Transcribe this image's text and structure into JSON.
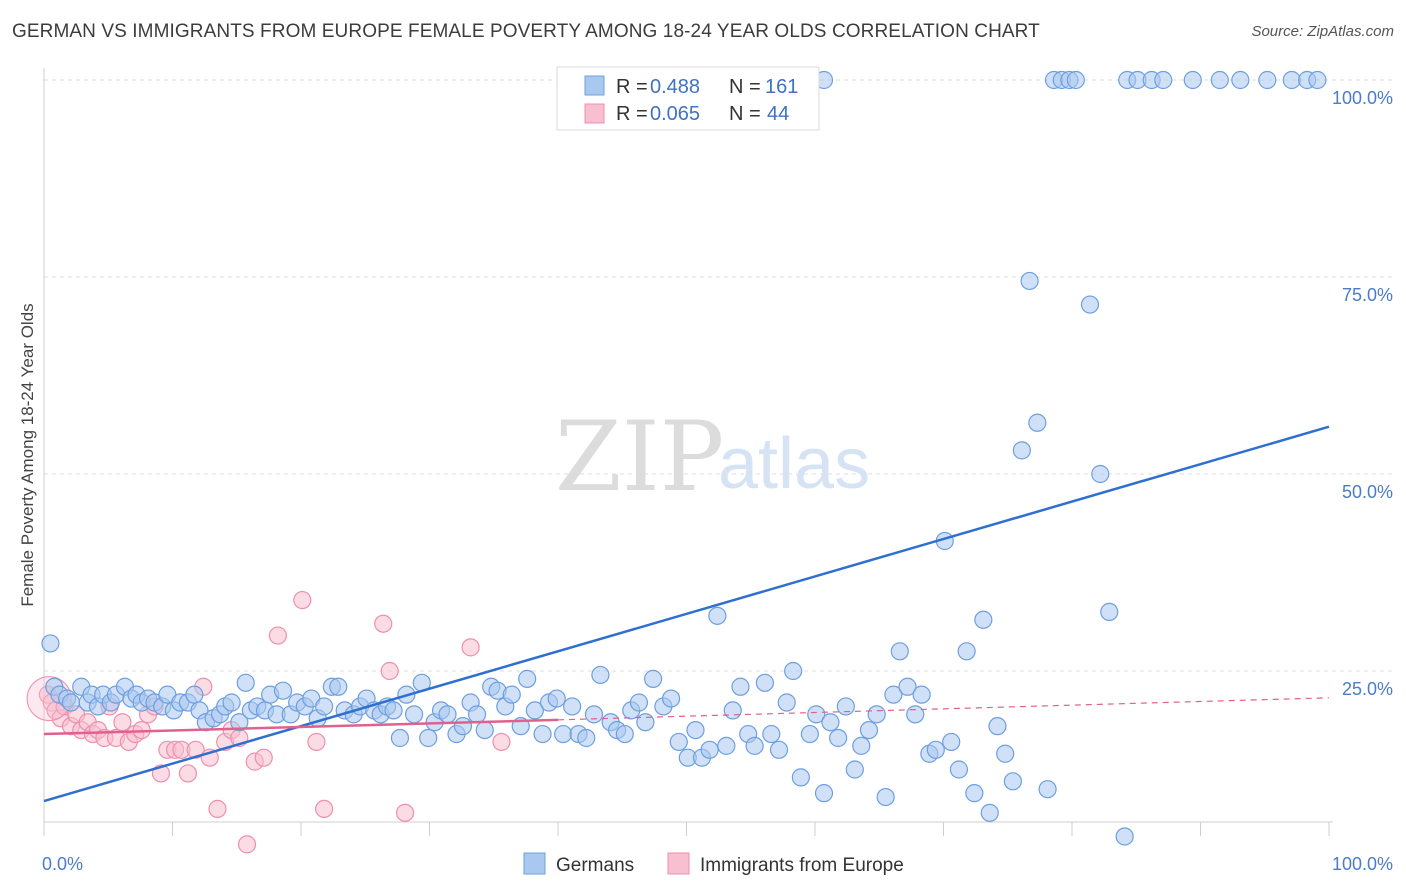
{
  "header": {
    "title": "GERMAN VS IMMIGRANTS FROM EUROPE FEMALE POVERTY AMONG 18-24 YEAR OLDS CORRELATION CHART",
    "source": "Source: ZipAtlas.com"
  },
  "watermark": {
    "zip": "ZIP",
    "atlas": "atlas"
  },
  "colors": {
    "germans_fill": "#a9c8f0",
    "germans_stroke": "#6d9fe0",
    "germans_line": "#2f6fd0",
    "immigrants_fill": "#f7bfd0",
    "immigrants_stroke": "#ee8fae",
    "immigrants_line": "#e0608e",
    "axis_tick_text": "#4a7cc9",
    "grid": "#dddddd"
  },
  "legend": {
    "rows": [
      {
        "r_label": "R =",
        "r_value": "0.488",
        "n_label": "N =",
        "n_value": "161"
      },
      {
        "r_label": "R =",
        "r_value": "0.065",
        "n_label": "N =",
        "n_value": "44"
      }
    ]
  },
  "chart_data": {
    "type": "scatter",
    "title": "GERMAN VS IMMIGRANTS FROM EUROPE FEMALE POVERTY AMONG 18-24 YEAR OLDS CORRELATION CHART",
    "xlabel": "",
    "ylabel": "Female Poverty Among 18-24 Year Olds",
    "xlim": [
      0,
      100
    ],
    "ylim": [
      0,
      105
    ],
    "x_tick_labels": [
      "0.0%",
      "100.0%"
    ],
    "y_ticks": [
      25,
      50,
      75,
      100
    ],
    "y_tick_labels": [
      "25.0%",
      "50.0%",
      "75.0%",
      "100.0%"
    ],
    "grid": true,
    "legend_position": "top-center",
    "series": [
      {
        "name": "Germans",
        "trend": {
          "x": [
            0,
            100
          ],
          "y": [
            8.5,
            56
          ]
        },
        "points": [
          [
            0.5,
            28.5
          ],
          [
            0.8,
            23
          ],
          [
            1.2,
            22
          ],
          [
            1.8,
            21.5
          ],
          [
            2.1,
            21
          ],
          [
            2.9,
            23
          ],
          [
            3.4,
            21
          ],
          [
            3.7,
            22
          ],
          [
            4.2,
            20.5
          ],
          [
            4.6,
            22
          ],
          [
            5.2,
            21
          ],
          [
            5.6,
            22
          ],
          [
            6.3,
            23
          ],
          [
            6.8,
            21.5
          ],
          [
            7.2,
            22
          ],
          [
            7.6,
            21
          ],
          [
            8.1,
            21.5
          ],
          [
            8.6,
            21
          ],
          [
            9.2,
            20.5
          ],
          [
            9.6,
            22
          ],
          [
            10.1,
            20
          ],
          [
            10.6,
            21
          ],
          [
            11.2,
            21
          ],
          [
            11.7,
            22
          ],
          [
            12.1,
            20
          ],
          [
            12.6,
            18.5
          ],
          [
            13.2,
            19
          ],
          [
            13.7,
            19.5
          ],
          [
            14.1,
            20.5
          ],
          [
            14.6,
            21
          ],
          [
            15.2,
            18.5
          ],
          [
            15.7,
            23.5
          ],
          [
            16.1,
            20
          ],
          [
            16.6,
            20.5
          ],
          [
            17.2,
            20
          ],
          [
            17.6,
            22
          ],
          [
            18.1,
            19.5
          ],
          [
            18.6,
            22.5
          ],
          [
            19.2,
            19.5
          ],
          [
            19.7,
            21
          ],
          [
            20.3,
            20.5
          ],
          [
            20.8,
            21.5
          ],
          [
            21.3,
            19
          ],
          [
            21.8,
            20.5
          ],
          [
            22.4,
            23
          ],
          [
            22.9,
            23
          ],
          [
            23.4,
            20
          ],
          [
            24.1,
            19.5
          ],
          [
            24.6,
            20.5
          ],
          [
            25.1,
            21.5
          ],
          [
            25.7,
            20
          ],
          [
            26.2,
            19.5
          ],
          [
            26.7,
            20.5
          ],
          [
            27.2,
            20
          ],
          [
            27.7,
            16.5
          ],
          [
            28.2,
            22
          ],
          [
            28.8,
            19.5
          ],
          [
            29.4,
            23.5
          ],
          [
            29.9,
            16.5
          ],
          [
            30.4,
            18.5
          ],
          [
            30.9,
            20
          ],
          [
            31.4,
            19.5
          ],
          [
            32.1,
            17
          ],
          [
            32.6,
            18
          ],
          [
            33.2,
            21
          ],
          [
            33.7,
            19.5
          ],
          [
            34.3,
            17.5
          ],
          [
            34.8,
            23
          ],
          [
            35.3,
            22.5
          ],
          [
            35.9,
            20.5
          ],
          [
            36.4,
            22
          ],
          [
            37.1,
            18
          ],
          [
            37.6,
            24
          ],
          [
            38.2,
            20
          ],
          [
            38.8,
            17
          ],
          [
            39.3,
            21
          ],
          [
            39.9,
            21.5
          ],
          [
            40.4,
            17
          ],
          [
            41.1,
            20.5
          ],
          [
            41.6,
            17
          ],
          [
            42.2,
            16.5
          ],
          [
            42.8,
            19.5
          ],
          [
            43.3,
            24.5
          ],
          [
            44.1,
            18.5
          ],
          [
            44.6,
            17.5
          ],
          [
            45.2,
            17
          ],
          [
            45.7,
            20
          ],
          [
            46.3,
            21
          ],
          [
            46.8,
            18.5
          ],
          [
            47.4,
            24
          ],
          [
            48.2,
            20.5
          ],
          [
            48.8,
            21.5
          ],
          [
            49.4,
            16
          ],
          [
            50.1,
            14
          ],
          [
            50.7,
            17.5
          ],
          [
            51.2,
            14
          ],
          [
            51.8,
            15
          ],
          [
            52.4,
            32
          ],
          [
            53.1,
            15.5
          ],
          [
            53.6,
            20
          ],
          [
            54.2,
            23
          ],
          [
            54.8,
            17
          ],
          [
            55.3,
            15.5
          ],
          [
            56.1,
            23.5
          ],
          [
            56.6,
            17
          ],
          [
            57.2,
            15
          ],
          [
            57.8,
            21
          ],
          [
            58.3,
            25
          ],
          [
            58.9,
            11.5
          ],
          [
            59.6,
            17
          ],
          [
            60.1,
            19.5
          ],
          [
            60.7,
            9.5
          ],
          [
            61.2,
            18.5
          ],
          [
            61.8,
            16.5
          ],
          [
            62.4,
            20.5
          ],
          [
            63.1,
            12.5
          ],
          [
            63.6,
            15.5
          ],
          [
            64.2,
            17.5
          ],
          [
            64.8,
            19.5
          ],
          [
            65.5,
            9
          ],
          [
            66.1,
            22
          ],
          [
            66.6,
            27.5
          ],
          [
            67.2,
            23
          ],
          [
            67.8,
            19.5
          ],
          [
            68.3,
            22
          ],
          [
            68.9,
            14.5
          ],
          [
            69.4,
            15
          ],
          [
            70.1,
            41.5
          ],
          [
            70.6,
            16
          ],
          [
            71.2,
            12.5
          ],
          [
            71.8,
            27.5
          ],
          [
            72.4,
            9.5
          ],
          [
            73.1,
            31.5
          ],
          [
            73.6,
            7
          ],
          [
            74.2,
            18
          ],
          [
            74.8,
            14.5
          ],
          [
            75.4,
            11
          ],
          [
            76.1,
            53
          ],
          [
            76.7,
            74.5
          ],
          [
            77.3,
            56.5
          ],
          [
            78.1,
            10
          ],
          [
            78.6,
            100
          ],
          [
            79.2,
            100
          ],
          [
            79.8,
            100
          ],
          [
            80.3,
            100
          ],
          [
            81.4,
            71.5
          ],
          [
            82.2,
            50
          ],
          [
            82.9,
            32.5
          ],
          [
            84.1,
            4
          ],
          [
            84.3,
            100
          ],
          [
            85.1,
            100
          ],
          [
            86.2,
            100
          ],
          [
            87.1,
            100
          ],
          [
            89.4,
            100
          ],
          [
            91.5,
            100
          ],
          [
            93.1,
            100
          ],
          [
            95.2,
            100
          ],
          [
            97.1,
            100
          ],
          [
            98.3,
            100
          ],
          [
            99.1,
            100
          ],
          [
            60.7,
            100
          ],
          [
            55.8,
            100
          ]
        ]
      },
      {
        "name": "Immigrants from Europe",
        "trend": {
          "x": [
            0,
            40
          ],
          "y": [
            17,
            18.8
          ]
        },
        "trend_extension": {
          "x": [
            40,
            100
          ],
          "y": [
            18.8,
            21.6
          ]
        },
        "points": [
          [
            0.3,
            22
          ],
          [
            0.6,
            21
          ],
          [
            0.9,
            20
          ],
          [
            1.3,
            19
          ],
          [
            1.6,
            20.5
          ],
          [
            2.1,
            18
          ],
          [
            2.5,
            19.5
          ],
          [
            2.9,
            17.5
          ],
          [
            3.4,
            18.5
          ],
          [
            3.8,
            17
          ],
          [
            4.2,
            17.5
          ],
          [
            4.7,
            16.5
          ],
          [
            5.1,
            20.5
          ],
          [
            5.6,
            16.5
          ],
          [
            6.1,
            18.5
          ],
          [
            6.6,
            16
          ],
          [
            7.1,
            17
          ],
          [
            7.6,
            17.5
          ],
          [
            8.1,
            19.5
          ],
          [
            8.6,
            20.5
          ],
          [
            9.1,
            12
          ],
          [
            9.6,
            15
          ],
          [
            10.2,
            15
          ],
          [
            10.7,
            15
          ],
          [
            11.2,
            12
          ],
          [
            11.8,
            15
          ],
          [
            12.4,
            23
          ],
          [
            12.9,
            14
          ],
          [
            13.5,
            7.5
          ],
          [
            14.1,
            16
          ],
          [
            14.6,
            17.5
          ],
          [
            15.2,
            16.5
          ],
          [
            15.8,
            3
          ],
          [
            16.4,
            13.5
          ],
          [
            17.1,
            14
          ],
          [
            18.2,
            29.5
          ],
          [
            20.1,
            34
          ],
          [
            21.2,
            16
          ],
          [
            21.8,
            7.5
          ],
          [
            26.4,
            31
          ],
          [
            26.9,
            25
          ],
          [
            28.1,
            7
          ],
          [
            33.2,
            28
          ],
          [
            35.6,
            16
          ]
        ]
      }
    ]
  },
  "bottom_legend": {
    "items": [
      {
        "label": "Germans"
      },
      {
        "label": "Immigrants from Europe"
      }
    ]
  }
}
